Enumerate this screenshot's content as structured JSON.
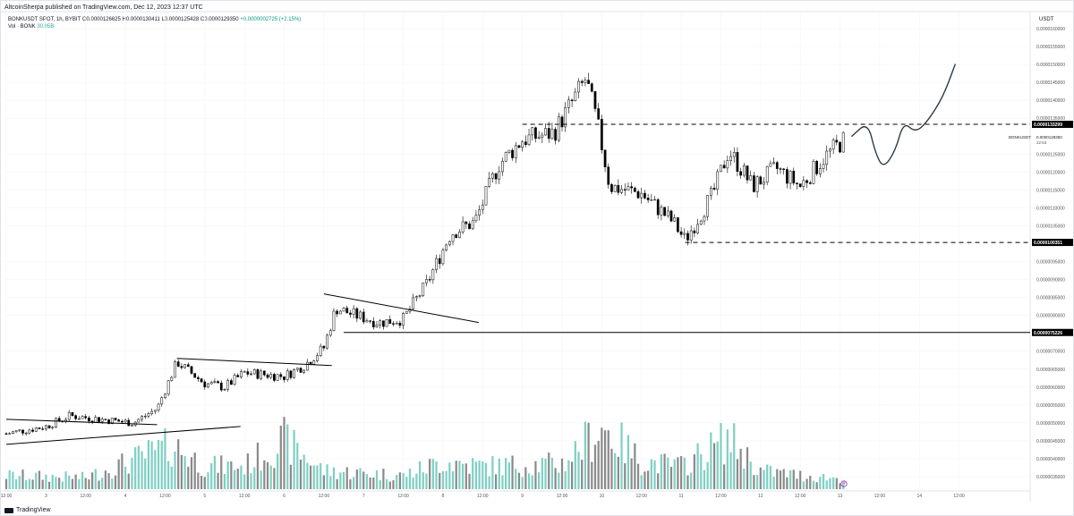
{
  "header": {
    "publisher_line": "AltcoinSherpa published on TradingView.com, Dec 12, 2023 12:37 UTC"
  },
  "legend": {
    "symbol": "BONKUSDT SPOT, 1h, BYBIT",
    "open": "O0.0000126625",
    "high": "H0.0000130411",
    "low": "L0.0000125428",
    "close": "C0.0000129350",
    "change": "+0.0000002725 (+2.15%)",
    "volume_label": "Vol · BONK",
    "volume_value": "30.05B"
  },
  "footer": {
    "brand": "TradingView"
  },
  "colors": {
    "candle_body": "#ffffff",
    "candle_border": "#000000",
    "volume_up": "#7fcfc4",
    "volume_down": "#8a8a8a",
    "grid": "#f0f3fa",
    "axis_text": "#555555",
    "drawing_line": "#000000",
    "projection_line": "#2a3a4a",
    "price_tag_bg": "#000000",
    "price_tag_text": "#ffffff"
  },
  "chart_data": {
    "type": "candlestick",
    "symbol": "BONKUSDT",
    "interval": "1h",
    "currency_label": "USDT",
    "price_axis_ticks": [
      "0.0000160000",
      "0.0000155000",
      "0.0000150000",
      "0.0000145000",
      "0.0000140000",
      "0.0000135000",
      "0.0000125000",
      "0.0000120000",
      "0.0000115000",
      "0.0000110000",
      "0.0000105000",
      "0.0000095000",
      "0.0000090000",
      "0.0000085000",
      "0.0000080000",
      "0.0000070000",
      "0.0000065000",
      "0.0000060000",
      "0.0000055000",
      "0.0000050000",
      "0.0000045000",
      "0.0000040000",
      "0.0000035000"
    ],
    "time_axis_ticks": [
      "12:00",
      "3",
      "12:00",
      "4",
      "12:00",
      "5",
      "12:00",
      "6",
      "12:00",
      "7",
      "12:00",
      "8",
      "12:00",
      "9",
      "12:00",
      "10",
      "12:00",
      "11",
      "12:00",
      "12",
      "12:00",
      "13",
      "12:00",
      "14",
      "12:00"
    ],
    "price_tags": [
      {
        "label": "0.0000133299",
        "value": 1.33299e-05
      },
      {
        "label": "0.0000100351",
        "value": 1.00351e-05
      },
      {
        "label": "0.0000075226",
        "value": 7.5226e-06
      }
    ],
    "current_price": {
      "symbol": "BONKUSDT",
      "price": "0.0000129350",
      "countdown": "22:53"
    },
    "horizontal_levels": [
      {
        "value": 1.33299e-05,
        "style": "dashed",
        "from_day": 8.5
      },
      {
        "value": 1.00351e-05,
        "style": "dashed",
        "from_day": 10.55
      },
      {
        "value": 7.5226e-06,
        "style": "solid",
        "from_day": 6.25
      }
    ],
    "close_series_keypoints": [
      {
        "day": 2.0,
        "close": 4.7e-06
      },
      {
        "day": 2.5,
        "close": 4.9e-06
      },
      {
        "day": 2.8,
        "close": 5.2e-06
      },
      {
        "day": 3.2,
        "close": 5.1e-06
      },
      {
        "day": 3.6,
        "close": 5e-06
      },
      {
        "day": 3.9,
        "close": 5.4e-06
      },
      {
        "day": 4.15,
        "close": 6.7e-06
      },
      {
        "day": 4.5,
        "close": 6.1e-06
      },
      {
        "day": 4.75,
        "close": 6e-06
      },
      {
        "day": 5.0,
        "close": 6.4e-06
      },
      {
        "day": 5.5,
        "close": 6.3e-06
      },
      {
        "day": 5.75,
        "close": 6.6e-06
      },
      {
        "day": 6.0,
        "close": 7.1e-06
      },
      {
        "day": 6.15,
        "close": 8.2e-06
      },
      {
        "day": 6.4,
        "close": 8e-06
      },
      {
        "day": 6.7,
        "close": 7.8e-06
      },
      {
        "day": 7.0,
        "close": 7.9e-06
      },
      {
        "day": 7.3,
        "close": 8.9e-06
      },
      {
        "day": 7.6,
        "close": 1.03e-05
      },
      {
        "day": 7.9,
        "close": 1.06e-05
      },
      {
        "day": 8.2,
        "close": 1.22e-05
      },
      {
        "day": 8.5,
        "close": 1.29e-05
      },
      {
        "day": 8.9,
        "close": 1.31e-05
      },
      {
        "day": 9.3,
        "close": 1.46e-05
      },
      {
        "day": 9.45,
        "close": 1.33e-05
      },
      {
        "day": 9.6,
        "close": 1.16e-05
      },
      {
        "day": 10.0,
        "close": 1.14e-05
      },
      {
        "day": 10.4,
        "close": 1.06e-05
      },
      {
        "day": 10.55,
        "close": 1.01e-05
      },
      {
        "day": 10.9,
        "close": 1.14e-05
      },
      {
        "day": 11.1,
        "close": 1.26e-05
      },
      {
        "day": 11.4,
        "close": 1.16e-05
      },
      {
        "day": 11.7,
        "close": 1.21e-05
      },
      {
        "day": 12.0,
        "close": 1.16e-05
      },
      {
        "day": 12.3,
        "close": 1.24e-05
      },
      {
        "day": 12.55,
        "close": 1.29e-05
      }
    ],
    "volume_series_keypoints": [
      {
        "day": 2.0,
        "volume": 1.2
      },
      {
        "day": 3.0,
        "volume": 1.0
      },
      {
        "day": 4.1,
        "volume": 3.8
      },
      {
        "day": 4.5,
        "volume": 2.0
      },
      {
        "day": 5.0,
        "volume": 2.0
      },
      {
        "day": 5.5,
        "volume": 4.2
      },
      {
        "day": 6.0,
        "volume": 1.6
      },
      {
        "day": 7.0,
        "volume": 1.2
      },
      {
        "day": 7.5,
        "volume": 2.4
      },
      {
        "day": 8.0,
        "volume": 2.0
      },
      {
        "day": 9.0,
        "volume": 2.2
      },
      {
        "day": 9.5,
        "volume": 5.4
      },
      {
        "day": 10.0,
        "volume": 2.4
      },
      {
        "day": 10.5,
        "volume": 2.0
      },
      {
        "day": 11.1,
        "volume": 4.4
      },
      {
        "day": 11.5,
        "volume": 1.6
      },
      {
        "day": 12.0,
        "volume": 1.2
      },
      {
        "day": 12.55,
        "volume": 0.9
      }
    ],
    "trendlines": [
      {
        "from": {
          "day": 2.0,
          "price": 5.1e-06
        },
        "to": {
          "day": 3.9,
          "price": 4.95e-06
        }
      },
      {
        "from": {
          "day": 2.0,
          "price": 4.4e-06
        },
        "to": {
          "day": 4.95,
          "price": 4.9e-06
        }
      },
      {
        "from": {
          "day": 4.15,
          "price": 6.8e-06
        },
        "to": {
          "day": 6.1,
          "price": 6.6e-06
        }
      },
      {
        "from": {
          "day": 6.0,
          "price": 8.6e-06
        },
        "to": {
          "day": 7.95,
          "price": 7.8e-06
        }
      }
    ],
    "projection_path": [
      {
        "day": 12.65,
        "price": 1.3e-05
      },
      {
        "day": 12.85,
        "price": 1.34e-05
      },
      {
        "day": 12.95,
        "price": 1.25e-05
      },
      {
        "day": 13.05,
        "price": 1.21e-05
      },
      {
        "day": 13.2,
        "price": 1.26e-05
      },
      {
        "day": 13.3,
        "price": 1.34e-05
      },
      {
        "day": 13.45,
        "price": 1.31e-05
      },
      {
        "day": 13.6,
        "price": 1.34e-05
      },
      {
        "day": 13.8,
        "price": 1.41e-05
      },
      {
        "day": 13.95,
        "price": 1.5e-05
      }
    ]
  }
}
